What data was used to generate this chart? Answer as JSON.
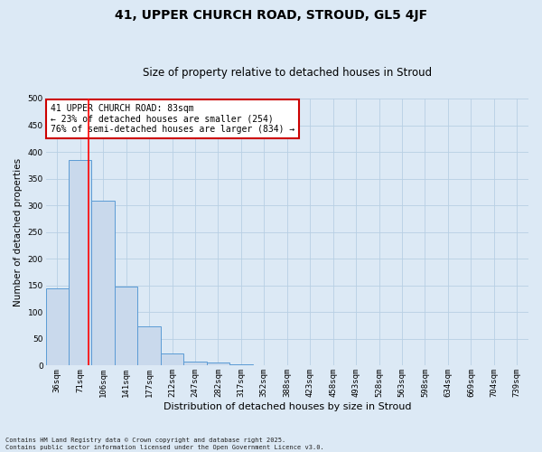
{
  "title1": "41, UPPER CHURCH ROAD, STROUD, GL5 4JF",
  "title2": "Size of property relative to detached houses in Stroud",
  "xlabel": "Distribution of detached houses by size in Stroud",
  "ylabel": "Number of detached properties",
  "categories": [
    "36sqm",
    "71sqm",
    "106sqm",
    "141sqm",
    "177sqm",
    "212sqm",
    "247sqm",
    "282sqm",
    "317sqm",
    "352sqm",
    "388sqm",
    "423sqm",
    "458sqm",
    "493sqm",
    "528sqm",
    "563sqm",
    "598sqm",
    "634sqm",
    "669sqm",
    "704sqm",
    "739sqm"
  ],
  "values": [
    145,
    385,
    308,
    148,
    73,
    22,
    8,
    5,
    2,
    0,
    0,
    0,
    0,
    0,
    0,
    0,
    0,
    0,
    0,
    0,
    0
  ],
  "bar_color": "#c9d9ec",
  "bar_edge_color": "#5b9bd5",
  "grid_color": "#b8cfe4",
  "background_color": "#dce9f5",
  "red_line_x": 1.35,
  "annotation_text": "41 UPPER CHURCH ROAD: 83sqm\n← 23% of detached houses are smaller (254)\n76% of semi-detached houses are larger (834) →",
  "annotation_box_color": "#ffffff",
  "annotation_box_edge": "#cc0000",
  "footnote": "Contains HM Land Registry data © Crown copyright and database right 2025.\nContains public sector information licensed under the Open Government Licence v3.0.",
  "ylim": [
    0,
    500
  ],
  "yticks": [
    0,
    50,
    100,
    150,
    200,
    250,
    300,
    350,
    400,
    450,
    500
  ],
  "title1_fontsize": 10,
  "title2_fontsize": 8.5,
  "xlabel_fontsize": 8,
  "ylabel_fontsize": 7.5,
  "tick_fontsize": 6.5,
  "annot_fontsize": 7,
  "footnote_fontsize": 5
}
